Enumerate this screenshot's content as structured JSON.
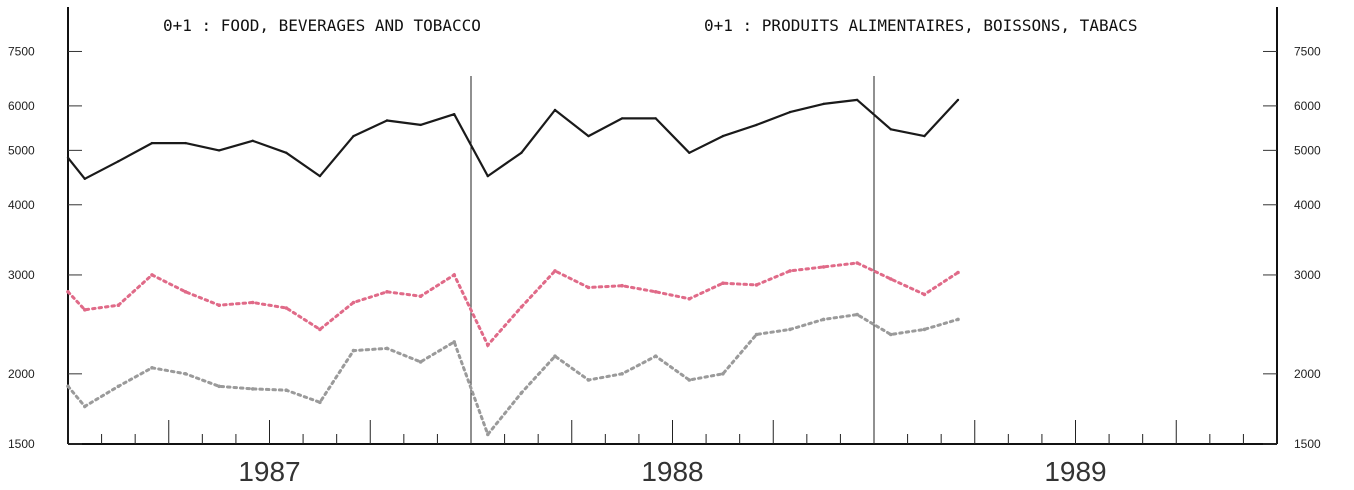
{
  "chart_data": {
    "type": "line",
    "title_en": "0+1 : FOOD, BEVERAGES AND TOBACCO",
    "title_fr": "0+1 : PRODUITS ALIMENTAIRES, BOISSONS, TABACS",
    "y_scale": "log",
    "ylim": [
      1500,
      9000
    ],
    "y_ticks": [
      1500,
      2000,
      3000,
      4000,
      5000,
      6000,
      7500
    ],
    "y_tick_labels": [
      "1500",
      "2000",
      "3000",
      "4000",
      "5000",
      "6000",
      "7500"
    ],
    "x_range": [
      0,
      36
    ],
    "year_labels": [
      {
        "label": "1987",
        "center": 6
      },
      {
        "label": "1988",
        "center": 18
      },
      {
        "label": "1989",
        "center": 30
      }
    ],
    "year_dividers": [
      12,
      24
    ],
    "grid": false,
    "series": [
      {
        "line_style": "solid",
        "color": "#1a1a1a",
        "x": [
          0,
          0.5,
          1.5,
          2.5,
          3.5,
          4.5,
          5.5,
          6.5,
          7.5,
          8.5,
          9.5,
          10.5,
          11.5,
          12.5,
          13.5,
          14.5,
          15.5,
          16.5,
          17.5,
          18.5,
          19.5,
          20.5,
          21.5,
          22.5,
          23.5,
          24.5,
          25.5,
          26.5
        ],
        "y": [
          4850,
          4450,
          4780,
          5150,
          5150,
          5000,
          5200,
          4950,
          4500,
          5300,
          5650,
          5550,
          5800,
          4500,
          4950,
          5900,
          5300,
          5700,
          5700,
          4950,
          5300,
          5550,
          5850,
          6050,
          6150,
          5450,
          5300,
          6150
        ]
      },
      {
        "line_style": "dotted",
        "color": "#e06a88",
        "x": [
          0,
          0.5,
          1.5,
          2.5,
          3.5,
          4.5,
          5.5,
          6.5,
          7.5,
          8.5,
          9.5,
          10.5,
          11.5,
          12.5,
          13.5,
          14.5,
          15.5,
          16.5,
          17.5,
          18.5,
          19.5,
          20.5,
          21.5,
          22.5,
          23.5,
          24.5,
          25.5,
          26.5
        ],
        "y": [
          2800,
          2600,
          2650,
          3000,
          2800,
          2650,
          2680,
          2620,
          2400,
          2680,
          2800,
          2750,
          3000,
          2250,
          2630,
          3050,
          2850,
          2870,
          2800,
          2720,
          2900,
          2880,
          3050,
          3100,
          3150,
          2950,
          2770,
          3030
        ]
      },
      {
        "line_style": "dotted",
        "color": "#9a9a9a",
        "x": [
          0,
          0.5,
          1.5,
          2.5,
          3.5,
          4.5,
          5.5,
          6.5,
          7.5,
          8.5,
          9.5,
          10.5,
          11.5,
          12.5,
          13.5,
          14.5,
          15.5,
          16.5,
          17.5,
          18.5,
          19.5,
          20.5,
          21.5,
          22.5,
          23.5,
          24.5,
          25.5,
          26.5
        ],
        "y": [
          1900,
          1750,
          1900,
          2050,
          2000,
          1900,
          1880,
          1870,
          1780,
          2200,
          2220,
          2100,
          2280,
          1560,
          1850,
          2150,
          1950,
          2000,
          2150,
          1950,
          2000,
          2350,
          2400,
          2500,
          2550,
          2350,
          2400,
          2500
        ]
      }
    ]
  }
}
